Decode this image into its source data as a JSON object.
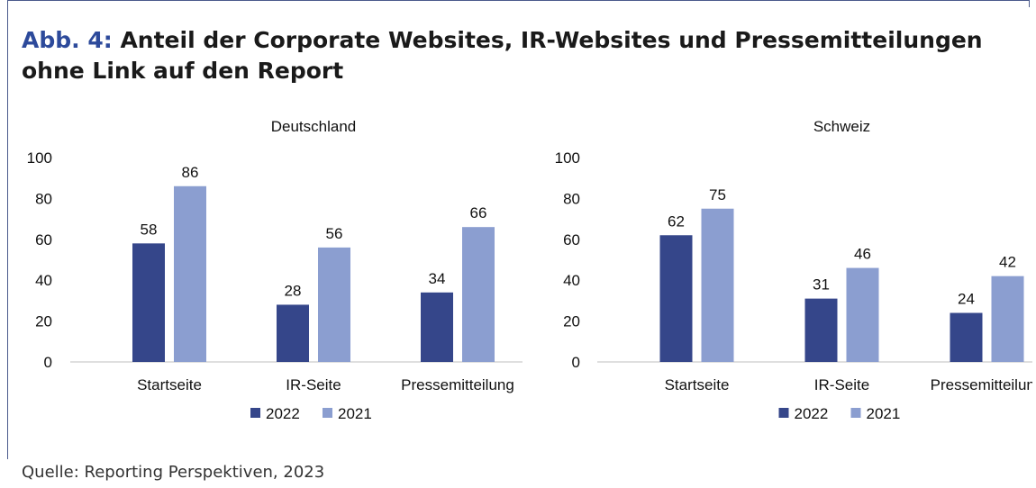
{
  "figure": {
    "prefix": "Abb. 4:",
    "title": "Anteil der Corporate Websites, IR-Websites und Pressemitteilungen ohne Link auf den Report",
    "source": "Quelle: Reporting Perspektiven, 2023"
  },
  "colors": {
    "2022": "#35468a",
    "2021": "#8b9ed0"
  },
  "chart_data": [
    {
      "type": "bar",
      "title": "Deutschland",
      "categories": [
        "Startseite",
        "IR-Seite",
        "Pressemitteilung"
      ],
      "series": [
        {
          "name": "2022",
          "values": [
            58,
            28,
            34
          ]
        },
        {
          "name": "2021",
          "values": [
            86,
            56,
            66
          ]
        }
      ],
      "ylim": [
        0,
        100
      ],
      "yticks": [
        0,
        20,
        40,
        60,
        80,
        100
      ],
      "legend": "bottom-center",
      "grid": false
    },
    {
      "type": "bar",
      "title": "Schweiz",
      "categories": [
        "Startseite",
        "IR-Seite",
        "Pressemitteilung"
      ],
      "series": [
        {
          "name": "2022",
          "values": [
            62,
            31,
            24
          ]
        },
        {
          "name": "2021",
          "values": [
            75,
            46,
            42
          ]
        }
      ],
      "ylim": [
        0,
        100
      ],
      "yticks": [
        0,
        20,
        40,
        60,
        80,
        100
      ],
      "legend": "bottom-center",
      "grid": false
    }
  ]
}
